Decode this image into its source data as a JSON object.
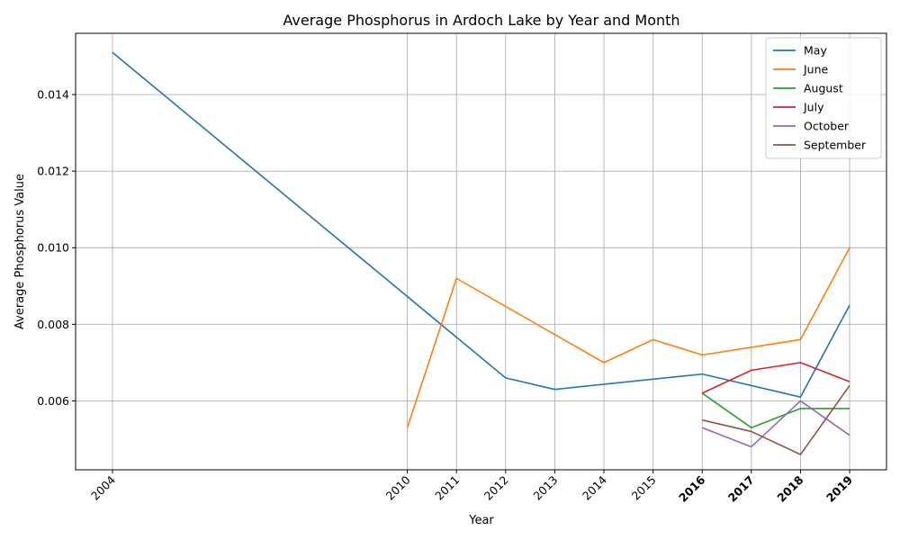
{
  "chart_data": {
    "type": "line",
    "title": "Average Phosphorus in Ardoch Lake by Year and Month",
    "xlabel": "Year",
    "ylabel": "Average Phosphorus Value",
    "xlim": [
      2003.25,
      2019.75
    ],
    "ylim": [
      0.0042,
      0.0156
    ],
    "x_ticks": [
      2004,
      2010,
      2011,
      2012,
      2013,
      2014,
      2015,
      2016,
      2017,
      2018,
      2019
    ],
    "bold_x_ticks": [
      2016,
      2017,
      2018,
      2019
    ],
    "y_ticks": [
      0.006,
      0.008,
      0.01,
      0.012,
      0.014
    ],
    "y_tick_labels": [
      "0.006",
      "0.008",
      "0.010",
      "0.012",
      "0.014"
    ],
    "grid": true,
    "legend_position": "top-right",
    "series": [
      {
        "name": "May",
        "color": "#1f77b4",
        "points": [
          [
            2004,
            0.0151
          ],
          [
            2012,
            0.0066
          ],
          [
            2013,
            0.0063
          ],
          [
            2016,
            0.0067
          ],
          [
            2018,
            0.0061
          ],
          [
            2019,
            0.0085
          ]
        ]
      },
      {
        "name": "June",
        "color": "#ff7f0e",
        "points": [
          [
            2010,
            0.0053
          ],
          [
            2011,
            0.0092
          ],
          [
            2014,
            0.007
          ],
          [
            2015,
            0.0076
          ],
          [
            2016,
            0.0072
          ],
          [
            2018,
            0.0076
          ],
          [
            2019,
            0.01
          ]
        ]
      },
      {
        "name": "August",
        "color": "#2ca02c",
        "points": [
          [
            2016,
            0.0062
          ],
          [
            2017,
            0.0053
          ],
          [
            2018,
            0.0058
          ],
          [
            2019,
            0.0058
          ]
        ]
      },
      {
        "name": "July",
        "color": "#d62728",
        "points": [
          [
            2016,
            0.0062
          ],
          [
            2017,
            0.0068
          ],
          [
            2018,
            0.007
          ],
          [
            2019,
            0.0065
          ]
        ]
      },
      {
        "name": "October",
        "color": "#9467bd",
        "points": [
          [
            2016,
            0.0053
          ],
          [
            2017,
            0.0048
          ],
          [
            2018,
            0.006
          ],
          [
            2019,
            0.0051
          ]
        ]
      },
      {
        "name": "September",
        "color": "#8c564b",
        "points": [
          [
            2016,
            0.0055
          ],
          [
            2017,
            0.0052
          ],
          [
            2018,
            0.0046
          ],
          [
            2019,
            0.0064
          ]
        ]
      }
    ]
  }
}
